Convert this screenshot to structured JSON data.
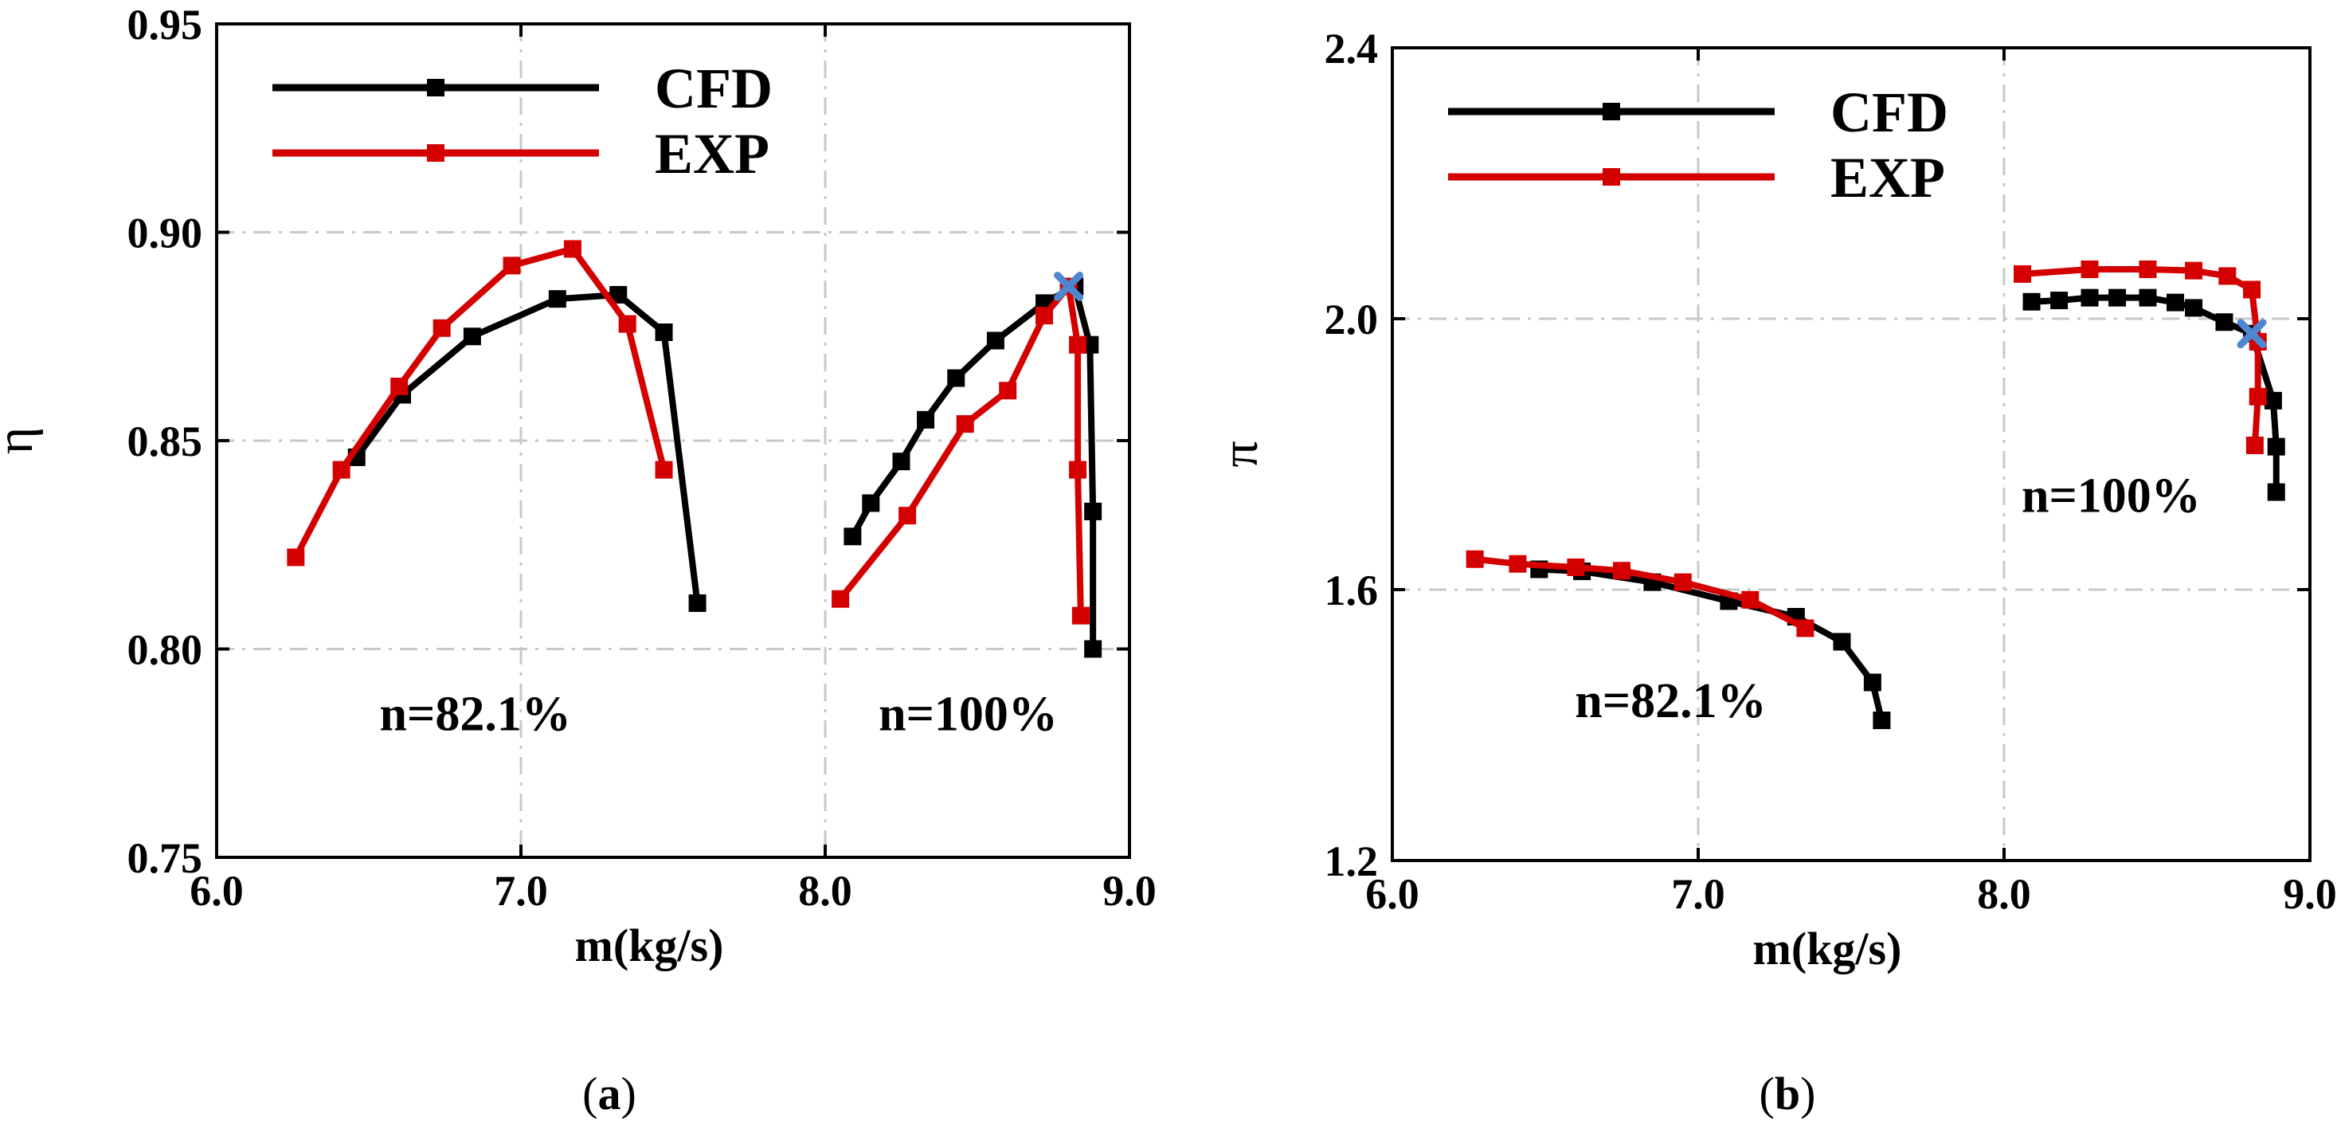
{
  "chart_data": [
    {
      "type": "line",
      "panel": "(a)",
      "caption_letter": "a",
      "xlabel": "m(kg/s)",
      "ylabel": "η",
      "xlim": [
        6.0,
        9.0
      ],
      "ylim": [
        0.75,
        0.95
      ],
      "x_ticks": [
        "6.0",
        "7.0",
        "8.0",
        "9.0"
      ],
      "y_ticks": [
        "0.75",
        "0.80",
        "0.85",
        "0.90",
        "0.95"
      ],
      "grid": true,
      "legend": {
        "position": "top-left",
        "entries": [
          "CFD",
          "EXP"
        ]
      },
      "annotations": [
        "n=82.1%",
        "n=100%"
      ],
      "series": [
        {
          "name": "CFD",
          "color": "#000000",
          "group": "n=82.1%",
          "x": [
            6.46,
            6.61,
            6.84,
            7.12,
            7.32,
            7.47,
            7.58
          ],
          "y": [
            0.846,
            0.861,
            0.875,
            0.884,
            0.885,
            0.876,
            0.811
          ]
        },
        {
          "name": "EXP",
          "color": "#d40000",
          "group": "n=82.1%",
          "x": [
            6.26,
            6.41,
            6.6,
            6.74,
            6.97,
            7.17,
            7.35,
            7.47
          ],
          "y": [
            0.822,
            0.843,
            0.863,
            0.877,
            0.892,
            0.896,
            0.878,
            0.843
          ]
        },
        {
          "name": "CFD",
          "color": "#000000",
          "group": "n=100%",
          "x": [
            8.09,
            8.15,
            8.25,
            8.33,
            8.43,
            8.56,
            8.72,
            8.82,
            8.87,
            8.88,
            8.88
          ],
          "y": [
            0.827,
            0.835,
            0.845,
            0.855,
            0.865,
            0.874,
            0.883,
            0.887,
            0.873,
            0.833,
            0.8
          ]
        },
        {
          "name": "EXP",
          "color": "#d40000",
          "group": "n=100%",
          "x": [
            8.05,
            8.27,
            8.46,
            8.6,
            8.72,
            8.8,
            8.83,
            8.83,
            8.84
          ],
          "y": [
            0.812,
            0.832,
            0.854,
            0.862,
            0.88,
            0.887,
            0.873,
            0.843,
            0.808
          ]
        }
      ],
      "design_point": {
        "x": 8.8,
        "y": 0.887,
        "color": "#4f86d1"
      }
    },
    {
      "type": "line",
      "panel": "(b)",
      "caption_letter": "b",
      "xlabel": "m(kg/s)",
      "ylabel": "π",
      "xlim": [
        6.0,
        9.0
      ],
      "ylim": [
        1.2,
        2.4
      ],
      "x_ticks": [
        "6.0",
        "7.0",
        "8.0",
        "9.0"
      ],
      "y_ticks": [
        "1.2",
        "1.6",
        "2.0",
        "2.4"
      ],
      "grid": true,
      "legend": {
        "position": "top-left",
        "entries": [
          "CFD",
          "EXP"
        ]
      },
      "annotations": [
        "n=82.1%",
        "n=100%"
      ],
      "series": [
        {
          "name": "CFD",
          "color": "#000000",
          "group": "n=82.1%",
          "x": [
            6.48,
            6.62,
            6.85,
            7.1,
            7.32,
            7.47,
            7.57,
            7.6
          ],
          "y": [
            1.63,
            1.627,
            1.611,
            1.583,
            1.56,
            1.523,
            1.463,
            1.407
          ]
        },
        {
          "name": "EXP",
          "color": "#d40000",
          "group": "n=82.1%",
          "x": [
            6.27,
            6.41,
            6.6,
            6.75,
            6.95,
            7.17,
            7.35
          ],
          "y": [
            1.645,
            1.638,
            1.633,
            1.628,
            1.611,
            1.585,
            1.543
          ]
        },
        {
          "name": "CFD",
          "color": "#000000",
          "group": "n=100%",
          "x": [
            8.09,
            8.18,
            8.28,
            8.37,
            8.47,
            8.56,
            8.62,
            8.72,
            8.81,
            8.88,
            8.89,
            8.89
          ],
          "y": [
            2.025,
            2.027,
            2.031,
            2.031,
            2.031,
            2.024,
            2.016,
            1.995,
            1.978,
            1.879,
            1.811,
            1.744
          ]
        },
        {
          "name": "EXP",
          "color": "#d40000",
          "group": "n=100%",
          "x": [
            8.06,
            8.28,
            8.47,
            8.62,
            8.73,
            8.81,
            8.83,
            8.83,
            8.82
          ],
          "y": [
            2.066,
            2.073,
            2.073,
            2.071,
            2.063,
            2.043,
            1.966,
            1.885,
            1.813
          ]
        }
      ],
      "design_point": {
        "x": 8.81,
        "y": 1.978,
        "color": "#4f86d1"
      }
    }
  ]
}
